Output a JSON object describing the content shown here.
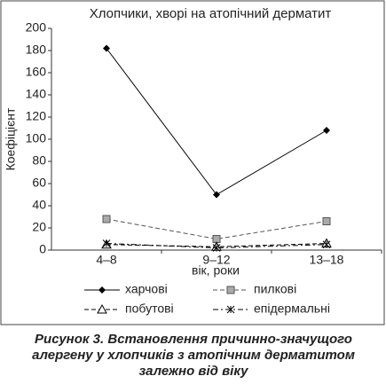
{
  "chart_data": {
    "type": "line",
    "title": "Хлопчики, хворі на атопічний дерматит",
    "x_label": "вік, роки",
    "y_label": "Коефіцієнт",
    "categories": [
      "4–8",
      "9–12",
      "13–18"
    ],
    "series": [
      {
        "name": "харчові",
        "color": "#000000",
        "marker": "diamond",
        "line_style": "solid",
        "values": [
          182,
          50,
          108
        ]
      },
      {
        "name": "пилкові",
        "color": "#555555",
        "marker": "square",
        "line_style": "dashed",
        "values": [
          28,
          10,
          26
        ]
      },
      {
        "name": "побутові",
        "color": "#000000",
        "marker": "triangle",
        "line_style": "dashed",
        "values": [
          5,
          3,
          6
        ]
      },
      {
        "name": "епідермальні",
        "color": "#000000",
        "marker": "cross",
        "line_style": "dashdot",
        "values": [
          6,
          2,
          5
        ]
      }
    ],
    "ylim": [
      0,
      200
    ],
    "yticks": [
      0,
      20,
      40,
      60,
      80,
      100,
      120,
      140,
      160,
      180,
      200
    ],
    "grid": false,
    "legend": "bottom",
    "caption": [
      "Рисунок 3. Встановлення причинно-значущого",
      "алергену у хлопчиків з атопічним дерматитом",
      "залежно від віку"
    ]
  }
}
